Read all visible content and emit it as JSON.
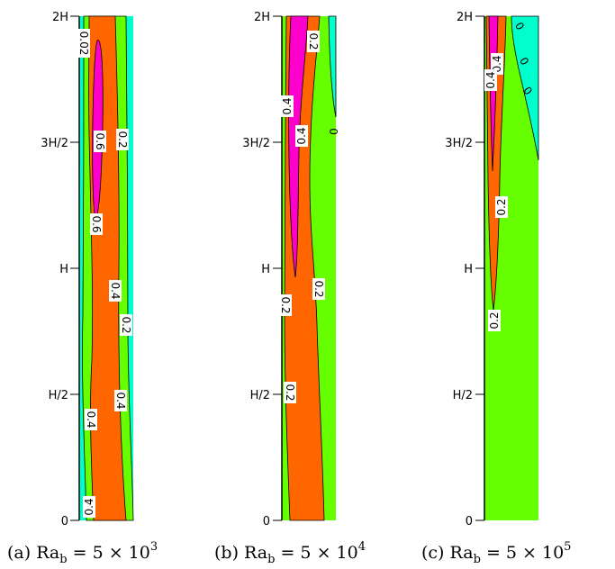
{
  "chart_data": {
    "type": "contour",
    "panels": [
      {
        "caption_prefix": "(a) Ra",
        "caption_sub": "b",
        "caption_value": " = 5 × 10",
        "caption_exp": "3",
        "contour_labels": [
          "0.02",
          "0.6",
          "0.6",
          "0.2",
          "0.4",
          "0.2",
          "0.4",
          "0.4",
          "0.4"
        ]
      },
      {
        "caption_prefix": "(b) Ra",
        "caption_sub": "b",
        "caption_value": " = 5 × 10",
        "caption_exp": "4",
        "contour_labels": [
          "0.2",
          "0.4",
          "0.4",
          "0",
          "0.2",
          "0.2",
          "0.2"
        ]
      },
      {
        "caption_prefix": "(c) Ra",
        "caption_sub": "b",
        "caption_value": " = 5 × 10",
        "caption_exp": "5",
        "contour_labels": [
          "0",
          "0",
          "0",
          "0.4",
          "0.4",
          "0.2",
          "0.2"
        ]
      }
    ],
    "y_ticks": [
      "0",
      "H/2",
      "H",
      "3H/2",
      "2H"
    ],
    "colors": {
      "cyan": "#00ffcc",
      "green": "#66ff00",
      "orange": "#ff6600",
      "magenta": "#ff00cc",
      "outline": "#000000"
    }
  }
}
